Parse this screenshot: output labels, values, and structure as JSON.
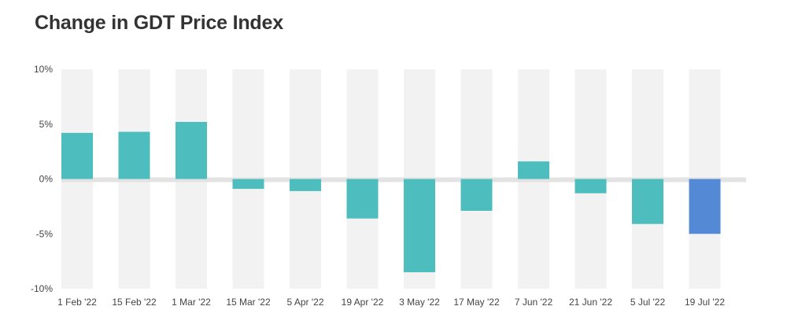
{
  "title": "Change in GDT Price Index",
  "chart_data": {
    "type": "bar",
    "title": "Change in GDT Price Index",
    "xlabel": "",
    "ylabel": "",
    "categories": [
      "1 Feb '22",
      "15 Feb '22",
      "1 Mar '22",
      "15 Mar '22",
      "5 Apr '22",
      "19 Apr '22",
      "3 May '22",
      "17 May '22",
      "7 Jun '22",
      "21 Jun '22",
      "5 Jul '22",
      "19 Jul '22"
    ],
    "values": [
      4.2,
      4.3,
      5.2,
      -0.9,
      -1.1,
      -3.6,
      -8.5,
      -2.9,
      1.6,
      -1.3,
      -4.1,
      -5.0
    ],
    "ylim": [
      -10,
      10
    ],
    "yticks": [
      10,
      5,
      0,
      -5,
      -10
    ],
    "ytick_labels": [
      "10%",
      "5%",
      "0%",
      "-5%",
      "-10%"
    ],
    "colors": {
      "bar": "#4dbdbd",
      "highlight": "#5489d6",
      "band": "#f2f2f2",
      "zero_band": "#e3e3e3"
    },
    "highlight_index": 11,
    "grid": false
  }
}
